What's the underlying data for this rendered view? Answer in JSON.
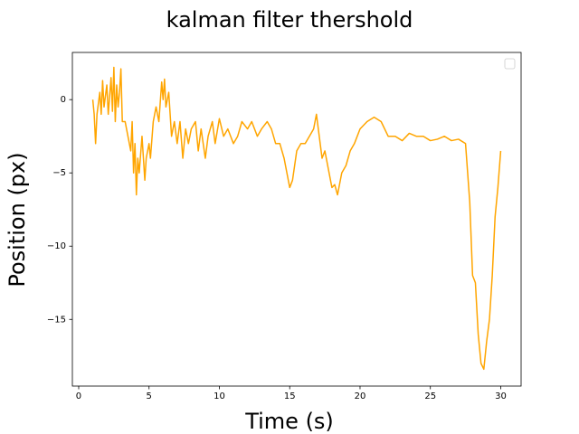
{
  "chart_data": {
    "type": "line",
    "title": "kalman filter thershold",
    "x_label": "Time (s)",
    "y_label": "Position (px)",
    "x": [
      1.0,
      1.1,
      1.2,
      1.3,
      1.5,
      1.6,
      1.7,
      1.8,
      2.0,
      2.1,
      2.3,
      2.4,
      2.5,
      2.6,
      2.7,
      2.8,
      2.9,
      3.0,
      3.1,
      3.3,
      3.5,
      3.7,
      3.8,
      3.9,
      4.0,
      4.1,
      4.2,
      4.3,
      4.5,
      4.7,
      4.8,
      5.0,
      5.1,
      5.3,
      5.5,
      5.7,
      5.9,
      6.0,
      6.1,
      6.2,
      6.4,
      6.6,
      6.8,
      7.0,
      7.2,
      7.4,
      7.6,
      7.8,
      8.0,
      8.3,
      8.5,
      8.7,
      9.0,
      9.2,
      9.5,
      9.7,
      10.0,
      10.3,
      10.6,
      11.0,
      11.3,
      11.6,
      12.0,
      12.3,
      12.7,
      13.0,
      13.4,
      13.7,
      14.0,
      14.3,
      14.6,
      14.8,
      15.0,
      15.2,
      15.5,
      15.8,
      16.1,
      16.4,
      16.7,
      16.9,
      17.1,
      17.3,
      17.5,
      17.7,
      18.0,
      18.2,
      18.4,
      18.7,
      19.0,
      19.3,
      19.6,
      20.0,
      20.5,
      21.0,
      21.5,
      22.0,
      22.5,
      23.0,
      23.5,
      24.0,
      24.5,
      25.0,
      25.5,
      26.0,
      26.5,
      27.0,
      27.5,
      27.8,
      28.0,
      28.2,
      28.4,
      28.6,
      28.8,
      29.0,
      29.2,
      29.4,
      29.6,
      29.8,
      30.0
    ],
    "values": [
      0,
      -1,
      -3,
      -1,
      0.5,
      -1,
      1.3,
      -0.5,
      1,
      -1,
      1.5,
      -0.8,
      2.2,
      -1.5,
      1,
      -0.5,
      0.5,
      2.1,
      -1.5,
      -1.5,
      -2.5,
      -3.5,
      -1.5,
      -5,
      -3,
      -6.5,
      -4,
      -5,
      -2.5,
      -5.5,
      -4,
      -3,
      -4,
      -1.5,
      -0.5,
      -1.5,
      1.2,
      0,
      1.4,
      -0.5,
      0.5,
      -2.5,
      -1.5,
      -3,
      -1.5,
      -4,
      -2,
      -3,
      -2,
      -1.5,
      -3.5,
      -2,
      -4,
      -2.5,
      -1.5,
      -3,
      -1.3,
      -2.5,
      -2,
      -3,
      -2.5,
      -1.5,
      -2,
      -1.5,
      -2.5,
      -2,
      -1.5,
      -2,
      -3,
      -3,
      -4,
      -5,
      -6,
      -5.5,
      -3.5,
      -3,
      -3,
      -2.5,
      -2,
      -1,
      -2.5,
      -4,
      -3.5,
      -4.5,
      -6,
      -5.8,
      -6.5,
      -5,
      -4.5,
      -3.5,
      -3,
      -2,
      -1.5,
      -1.2,
      -1.5,
      -2.5,
      -2.5,
      -2.8,
      -2.3,
      -2.5,
      -2.5,
      -2.8,
      -2.7,
      -2.5,
      -2.8,
      -2.7,
      -3,
      -7,
      -12,
      -12.5,
      -16,
      -18,
      -18.4,
      -16.5,
      -15,
      -12,
      -8,
      -6,
      -3.5
    ],
    "color": "orange",
    "xlim": [
      -0.45,
      31.45
    ],
    "ylim": [
      -19.55,
      3.22
    ],
    "xticks": [
      0,
      5,
      10,
      15,
      20,
      25,
      30
    ],
    "yticks": [
      {
        "value": -15,
        "label": "−15"
      },
      {
        "value": -10,
        "label": "−10"
      },
      {
        "value": -5,
        "label": "−5"
      },
      0
    ],
    "legend": "upper right"
  }
}
